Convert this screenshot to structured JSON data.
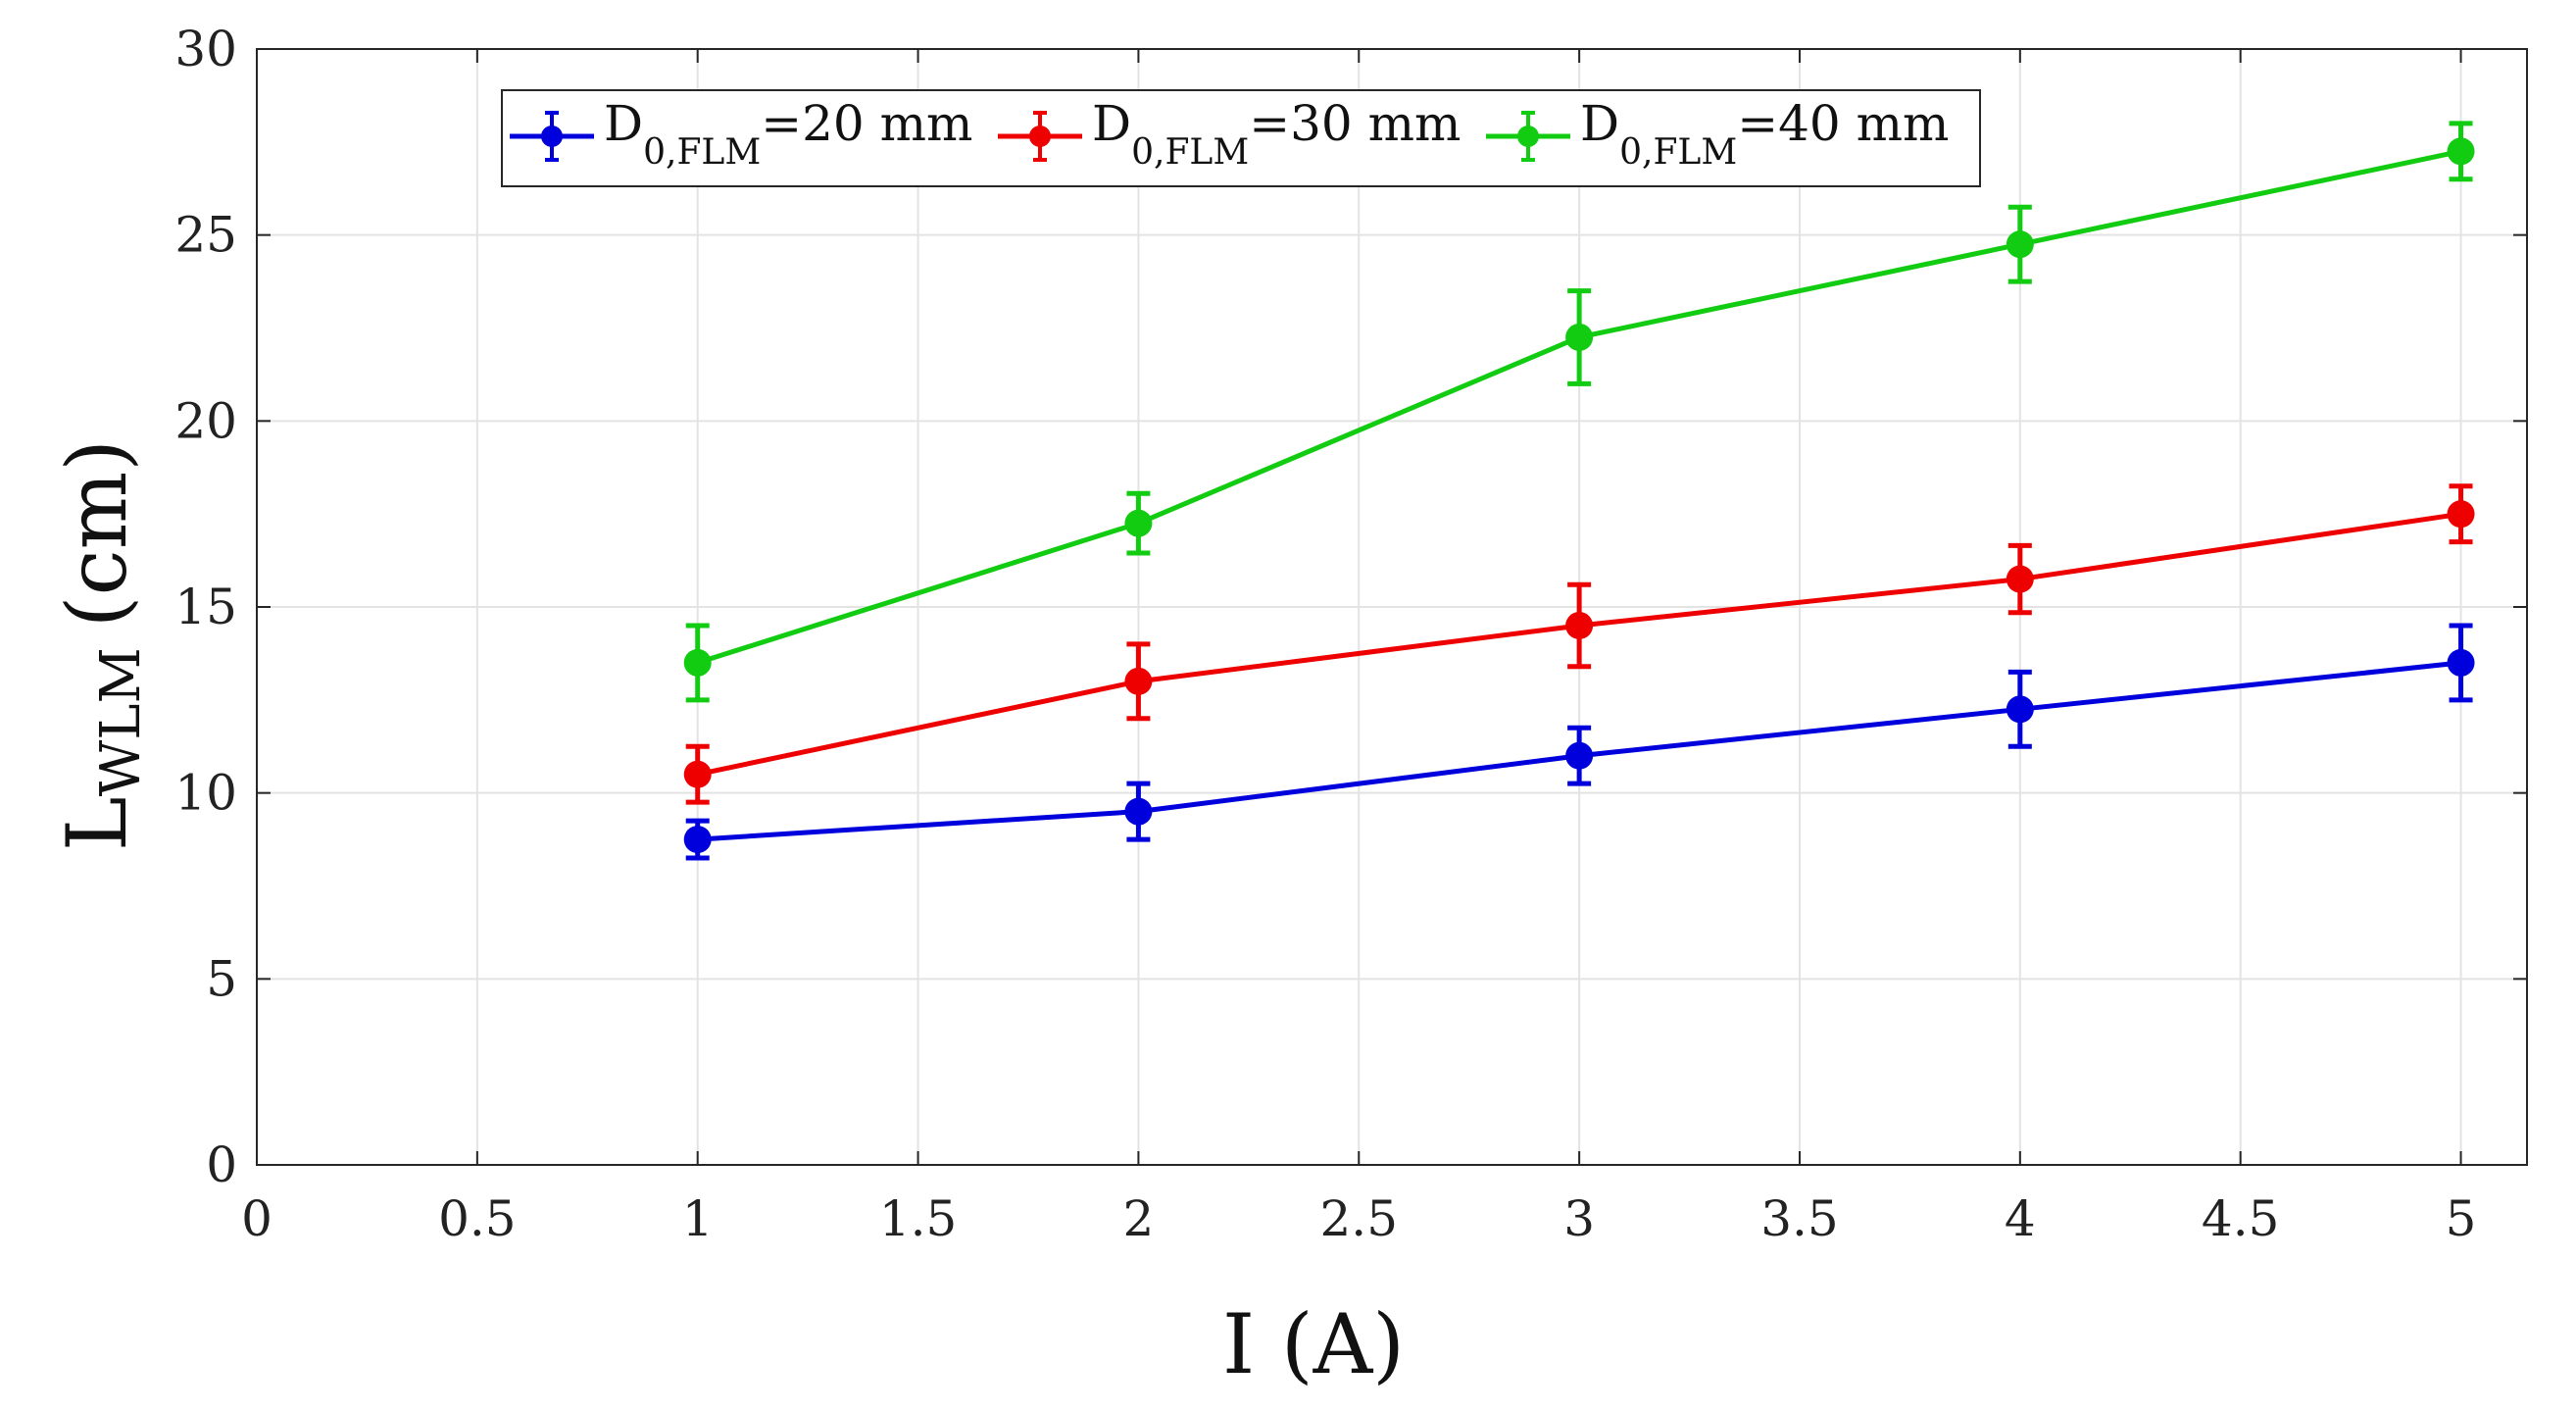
{
  "chart_data": {
    "type": "line",
    "xlabel": "I (A)",
    "ylabel": {
      "main": "L",
      "sub": "WLM",
      "unit": "(cm)"
    },
    "xlim": [
      0,
      5.15
    ],
    "ylim": [
      0,
      30
    ],
    "xticks": [
      0,
      0.5,
      1,
      1.5,
      2,
      2.5,
      3,
      3.5,
      4,
      4.5,
      5
    ],
    "xtick_labels": [
      "0",
      "0.5",
      "1",
      "1.5",
      "2",
      "2.5",
      "3",
      "3.5",
      "4",
      "4.5",
      "5"
    ],
    "yticks": [
      0,
      5,
      10,
      15,
      20,
      25,
      30
    ],
    "ytick_labels": [
      "0",
      "5",
      "10",
      "15",
      "20",
      "25",
      "30"
    ],
    "grid": true,
    "legend_position": "top-center",
    "x": [
      1,
      2,
      3,
      4,
      5
    ],
    "series": [
      {
        "name": "D0,FLM=20 mm",
        "legend": {
          "main": "D",
          "sub": "0,FLM",
          "rest": "=20 mm"
        },
        "color": "#0000dd",
        "values": [
          8.75,
          9.5,
          11.0,
          12.25,
          13.5
        ],
        "errors": [
          0.5,
          0.75,
          0.75,
          1.0,
          1.0
        ]
      },
      {
        "name": "D0,FLM=30 mm",
        "legend": {
          "main": "D",
          "sub": "0,FLM",
          "rest": "=30 mm"
        },
        "color": "#ee0000",
        "values": [
          10.5,
          13.0,
          14.5,
          15.75,
          17.5
        ],
        "errors": [
          0.75,
          1.0,
          1.1,
          0.9,
          0.75
        ]
      },
      {
        "name": "D0,FLM=40 mm",
        "legend": {
          "main": "D",
          "sub": "0,FLM",
          "rest": "=40 mm"
        },
        "color": "#11cc11",
        "values": [
          13.5,
          17.25,
          22.25,
          24.75,
          27.25
        ],
        "errors": [
          1.0,
          0.8,
          1.25,
          1.0,
          0.75
        ]
      }
    ]
  }
}
